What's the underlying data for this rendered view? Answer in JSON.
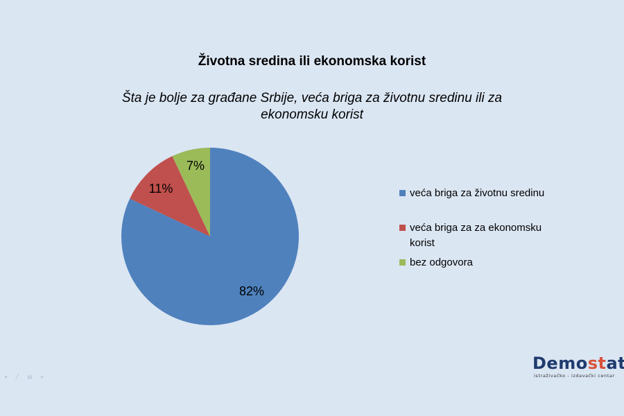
{
  "chart_data": {
    "type": "pie",
    "title": "Životna sredina ili ekonomska korist",
    "subtitle": "Šta je bolje za građane Srbije, veća briga za životnu sredinu ili za ekonomsku korist",
    "slices": [
      {
        "label": "veća briga za životnu sredinu",
        "value": 82,
        "display": "82%",
        "color": "#4f81bd"
      },
      {
        "label": "veća briga za za ekonomsku korist",
        "value": 11,
        "display": "11%",
        "color": "#c0504d"
      },
      {
        "label": "bez odgovora",
        "value": 7,
        "display": "7%",
        "color": "#9bbb59"
      }
    ],
    "legend_position": "right"
  },
  "logo": {
    "accent_text": "st"
  },
  "colors": {
    "background": "#dbe6f3"
  }
}
